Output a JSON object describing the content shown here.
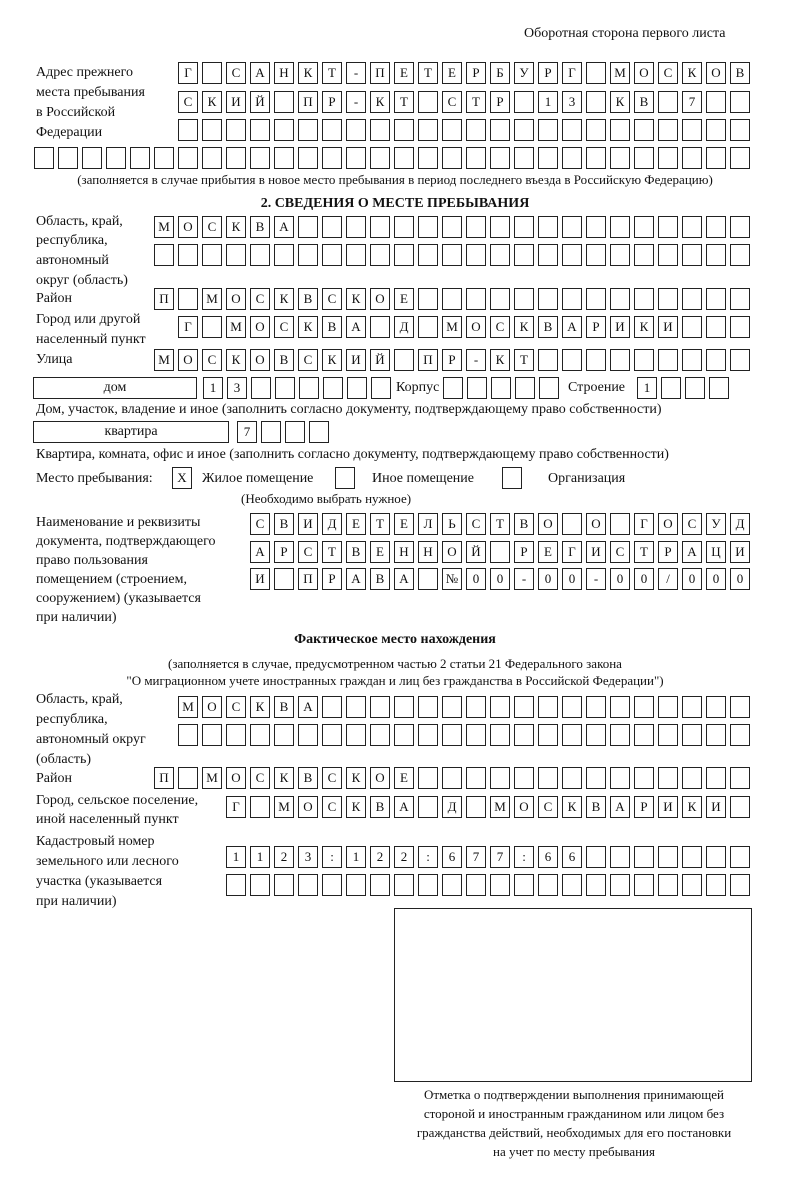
{
  "header": {
    "page_side": "Оборотная сторона первого листа"
  },
  "previous_address": {
    "label_lines": [
      "Адрес прежнего",
      "места пребывания",
      "в Российской",
      "Федерации"
    ],
    "rows": [
      "Г САНКТ-ПЕТЕРБУРГ МОСКОВ",
      "СКИЙ ПР-КТ СТР 13 КВ 7",
      "",
      ""
    ],
    "note": "(заполняется в случае прибытия в новое место пребывания в период последнего въезда в Российскую Федерацию)"
  },
  "section2": {
    "title": "2. СВЕДЕНИЯ О МЕСТЕ ПРЕБЫВАНИЯ",
    "region_label_lines": [
      "Область, край,",
      "республика,",
      "автономный",
      "округ (область)"
    ],
    "region_rows": [
      "МОСКВА",
      ""
    ],
    "district_label": "Район",
    "district": "П МОСКВСКОЕ",
    "city_label_lines": [
      "Город или другой",
      "населенный пункт"
    ],
    "city": "Г МОСКВА Д МОСКВАРИКИ",
    "street_label": "Улица",
    "street": "МОСКОВСКИЙ ПР-КТ",
    "house_type": "дом",
    "house_number": "13",
    "building_label": "Корпус",
    "building": "",
    "structure_label": "Строение",
    "structure": "1",
    "house_note": "Дом, участок, владение и иное (заполнить согласно документу, подтверждающему право собственности)",
    "apartment_type": "квартира",
    "apartment_number": "7",
    "apartment_note": "Квартира, комната, офис и иное (заполнить согласно документу, подтверждающему право собственности)",
    "place_label": "Место пребывания:",
    "place_options": [
      {
        "label": "Жилое помещение",
        "mark": "X"
      },
      {
        "label": "Иное помещение",
        "mark": ""
      },
      {
        "label": "Организация",
        "mark": ""
      }
    ],
    "place_note": "(Необходимо выбрать нужное)",
    "document_label_lines": [
      "Наименование и реквизиты",
      "документа, подтверждающего",
      "право пользования",
      "помещением (строением,",
      "сооружением) (указывается",
      "при наличии)"
    ],
    "document_rows": [
      "СВИДЕТЕЛЬСТВО О ГОСУД",
      "АРСТВЕННОЙ РЕГИСТРАЦИ",
      "И ПРАВА №00-00-00/000"
    ]
  },
  "actual": {
    "title": "Фактическое место нахождения",
    "note_lines": [
      "(заполняется в случае, предусмотренном частью 2 статьи 21 Федерального закона",
      "\"О миграционном учете иностранных граждан и лиц без гражданства в Российской Федерации\")"
    ],
    "region_label_lines": [
      "Область, край,",
      "республика,",
      "автономный округ",
      "(область)"
    ],
    "region_rows": [
      "МОСКВА",
      ""
    ],
    "district_label": "Район",
    "district": "П МОСКВСКОЕ",
    "city_label_lines": [
      "Город, сельское поселение,",
      "иной населенный пункт"
    ],
    "city": "Г МОСКВА Д МОСКВАРИКИ",
    "cadastral_label_lines": [
      "Кадастровый номер",
      "земельного или лесного",
      "участка (указывается",
      "при наличии)"
    ],
    "cadastral_rows": [
      "1123:122:677:66",
      ""
    ]
  },
  "stamp": {
    "caption_lines": [
      "Отметка о подтверждении выполнения принимающей",
      "стороной и иностранным гражданином или лицом без",
      "гражданства действий, необходимых для его постановки",
      "на учет по месту пребывания"
    ]
  }
}
